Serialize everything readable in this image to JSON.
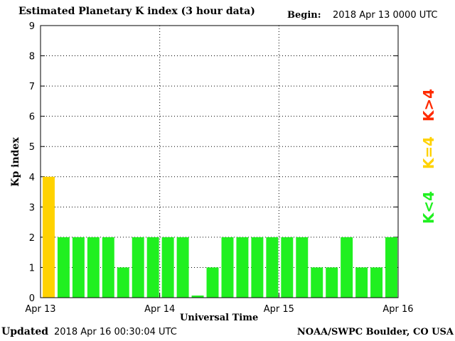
{
  "header": {
    "title": "Estimated Planetary K index (3 hour data)",
    "begin_label": "Begin:",
    "begin_value": "2018 Apr 13 0000 UTC"
  },
  "footer": {
    "updated_label": "Updated",
    "updated_value": "2018 Apr 16 00:30:04 UTC",
    "source": "NOAA/SWPC Boulder, CO USA"
  },
  "legend": [
    {
      "label": "K>4",
      "color": "#ff2a00"
    },
    {
      "label": "K=4",
      "color": "#ffd200"
    },
    {
      "label": "K<4",
      "color": "#20f020"
    }
  ],
  "chart_data": {
    "type": "bar",
    "ylabel": "Kp index",
    "xlabel": "Universal Time",
    "ylim": [
      0,
      9
    ],
    "yticks": [
      "0",
      "1",
      "2",
      "3",
      "4",
      "5",
      "6",
      "7",
      "8",
      "9"
    ],
    "xticks": [
      "Apr 13",
      "Apr 14",
      "Apr 15",
      "Apr 16"
    ],
    "grid": true,
    "values": [
      4,
      2,
      2,
      2,
      2,
      1,
      2,
      2,
      2,
      2,
      0.07,
      1,
      2,
      2,
      2,
      2,
      2,
      2,
      1,
      1,
      2,
      1,
      1,
      2
    ],
    "colors": {
      "below4": "#20f020",
      "equal4": "#ffd200",
      "above4": "#ff2a00"
    }
  }
}
